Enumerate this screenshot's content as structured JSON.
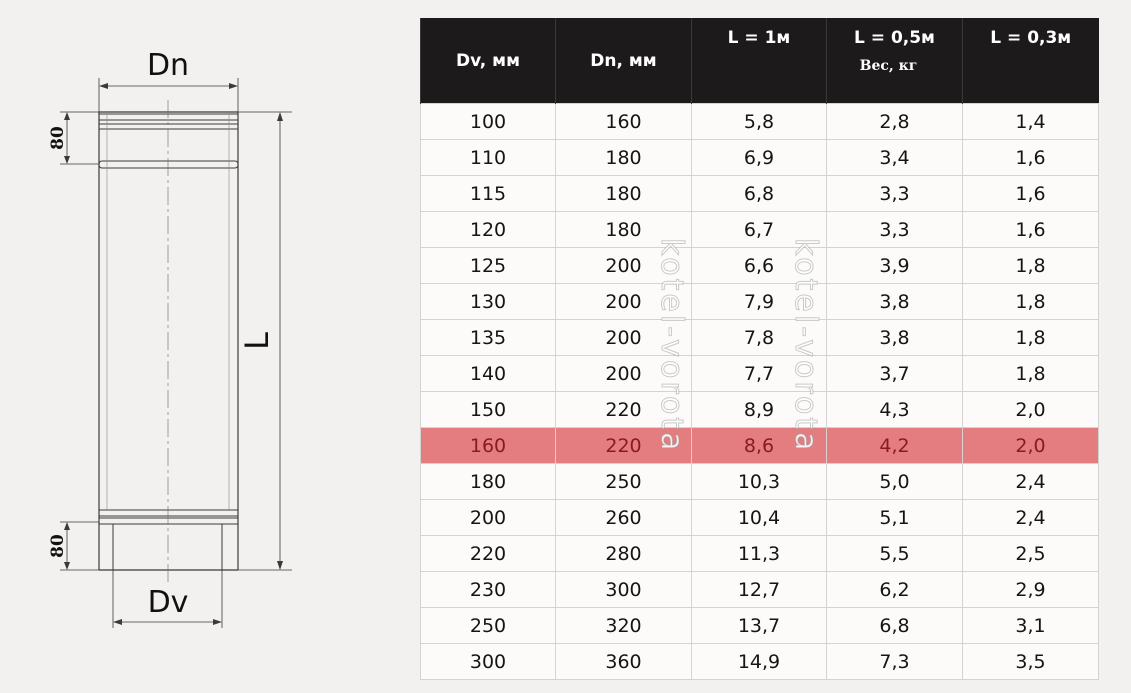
{
  "drawing": {
    "dn_label": "Dn",
    "dv_label": "Dv",
    "l_label": "L",
    "top_band_label": "80",
    "bottom_band_label": "80"
  },
  "table": {
    "headers": [
      "Dv, мм",
      "Dn, мм",
      "L = 1м",
      "L = 0,5м",
      "L = 0,3м"
    ],
    "weight_label": "Вес, кг",
    "highlight_color": "#e47d80",
    "highlight_row": 9,
    "rows": [
      [
        "100",
        "160",
        "5,8",
        "2,8",
        "1,4"
      ],
      [
        "110",
        "180",
        "6,9",
        "3,4",
        "1,6"
      ],
      [
        "115",
        "180",
        "6,8",
        "3,3",
        "1,6"
      ],
      [
        "120",
        "180",
        "6,7",
        "3,3",
        "1,6"
      ],
      [
        "125",
        "200",
        "6,6",
        "3,9",
        "1,8"
      ],
      [
        "130",
        "200",
        "7,9",
        "3,8",
        "1,8"
      ],
      [
        "135",
        "200",
        "7,8",
        "3,8",
        "1,8"
      ],
      [
        "140",
        "200",
        "7,7",
        "3,7",
        "1,8"
      ],
      [
        "150",
        "220",
        "8,9",
        "4,3",
        "2,0"
      ],
      [
        "160",
        "220",
        "8,6",
        "4,2",
        "2,0"
      ],
      [
        "180",
        "250",
        "10,3",
        "5,0",
        "2,4"
      ],
      [
        "200",
        "260",
        "10,4",
        "5,1",
        "2,4"
      ],
      [
        "220",
        "280",
        "11,3",
        "5,5",
        "2,5"
      ],
      [
        "230",
        "300",
        "12,7",
        "6,2",
        "2,9"
      ],
      [
        "250",
        "320",
        "13,7",
        "6,8",
        "3,1"
      ],
      [
        "300",
        "360",
        "14,9",
        "7,3",
        "3,5"
      ]
    ]
  },
  "watermark": {
    "text": "kotel-vorota"
  }
}
